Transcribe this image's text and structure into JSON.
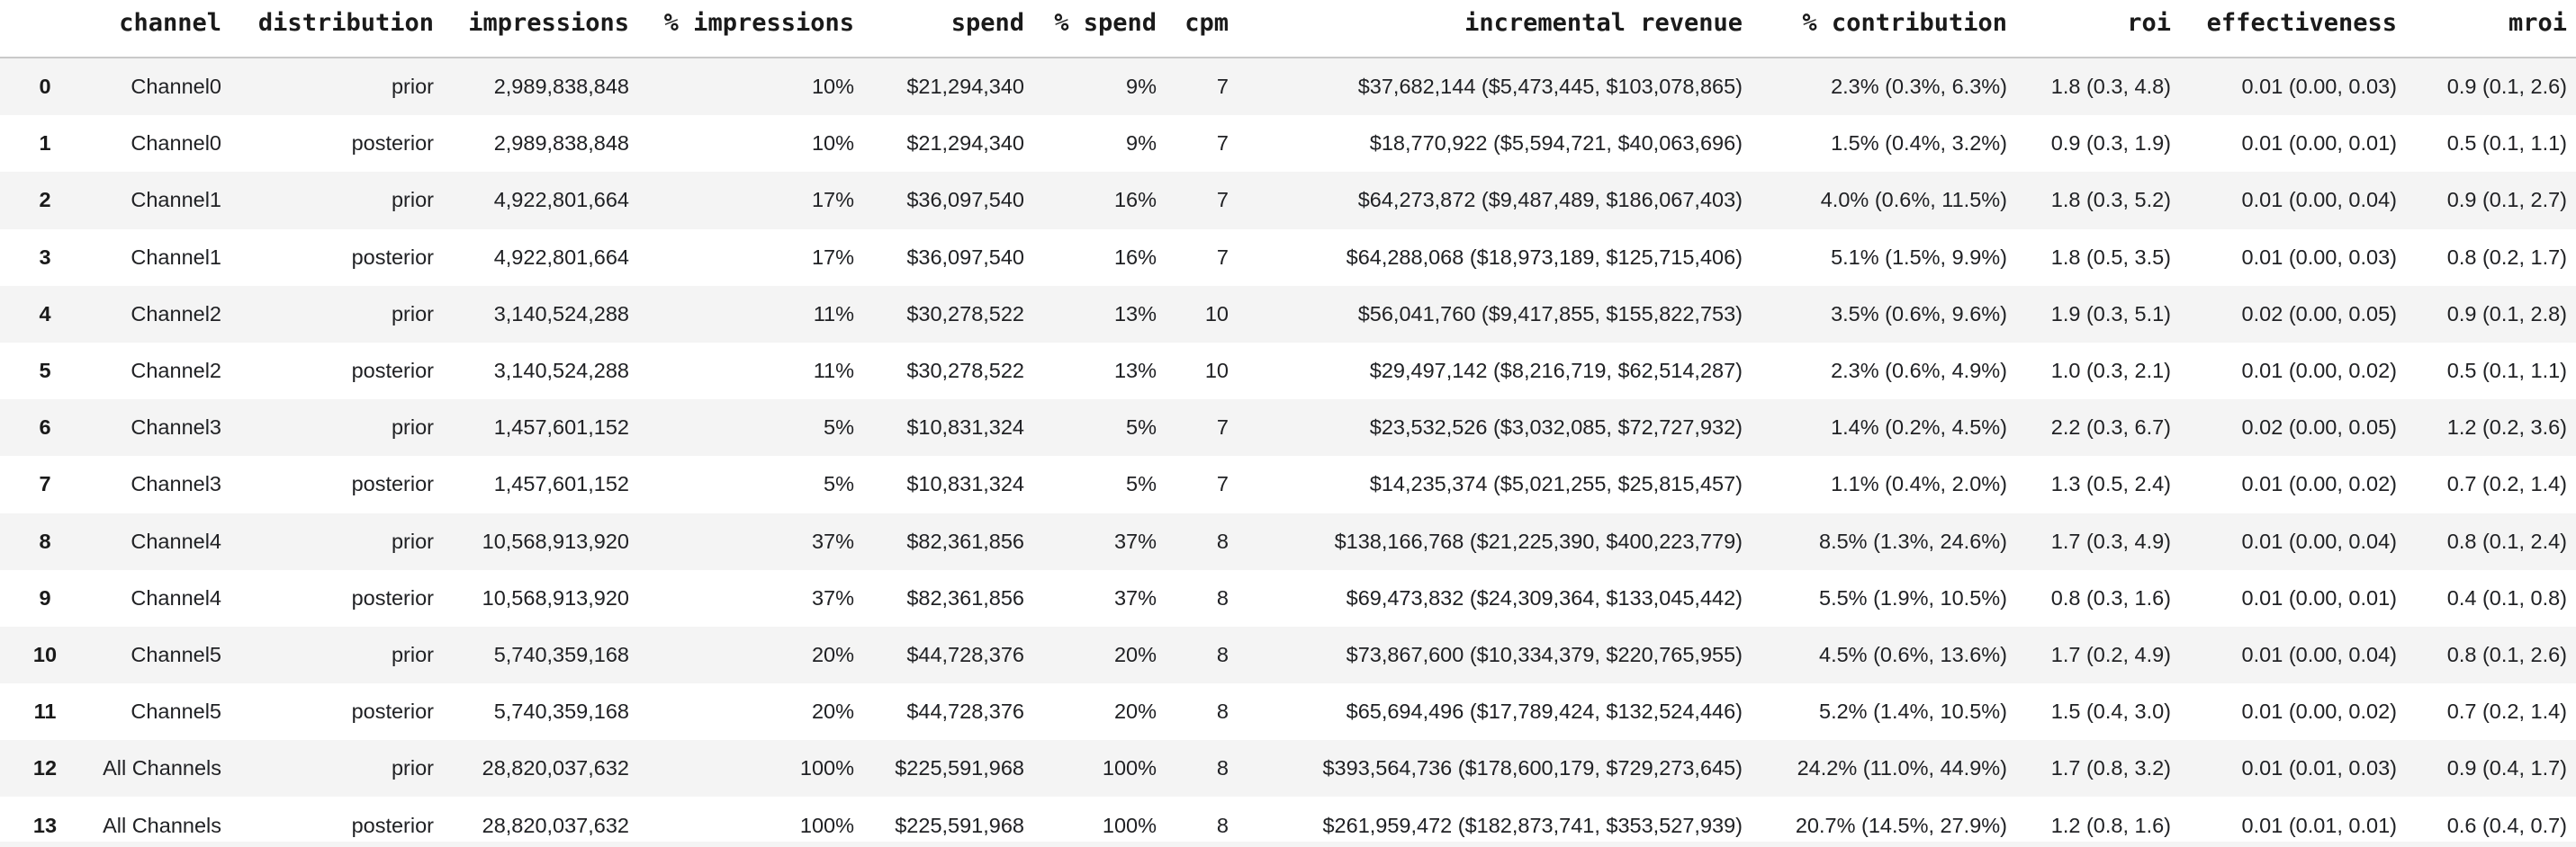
{
  "colors": {
    "background": "#ffffff",
    "stripe": "#f4f4f4",
    "header_border": "#c9c9c9",
    "text": "#202124"
  },
  "table": {
    "columns": [
      {
        "key": "index",
        "label": "",
        "align": "center"
      },
      {
        "key": "channel",
        "label": "channel",
        "align": "right"
      },
      {
        "key": "distribution",
        "label": "distribution",
        "align": "right"
      },
      {
        "key": "impressions",
        "label": "impressions",
        "align": "right"
      },
      {
        "key": "pct_impressions",
        "label": "% impressions",
        "align": "right"
      },
      {
        "key": "spend",
        "label": "spend",
        "align": "right"
      },
      {
        "key": "pct_spend",
        "label": "% spend",
        "align": "right"
      },
      {
        "key": "cpm",
        "label": "cpm",
        "align": "right"
      },
      {
        "key": "incremental_revenue",
        "label": "incremental revenue",
        "align": "right"
      },
      {
        "key": "pct_contribution",
        "label": "% contribution",
        "align": "right"
      },
      {
        "key": "roi",
        "label": "roi",
        "align": "right"
      },
      {
        "key": "effectiveness",
        "label": "effectiveness",
        "align": "right"
      },
      {
        "key": "mroi",
        "label": "mroi",
        "align": "right"
      }
    ],
    "rows": [
      {
        "index": "0",
        "channel": "Channel0",
        "distribution": "prior",
        "impressions": "2,989,838,848",
        "pct_impressions": "10%",
        "spend": "$21,294,340",
        "pct_spend": "9%",
        "cpm": "7",
        "incremental_revenue": "$37,682,144 ($5,473,445, $103,078,865)",
        "pct_contribution": "2.3% (0.3%, 6.3%)",
        "roi": "1.8 (0.3, 4.8)",
        "effectiveness": "0.01 (0.00, 0.03)",
        "mroi": "0.9 (0.1, 2.6)"
      },
      {
        "index": "1",
        "channel": "Channel0",
        "distribution": "posterior",
        "impressions": "2,989,838,848",
        "pct_impressions": "10%",
        "spend": "$21,294,340",
        "pct_spend": "9%",
        "cpm": "7",
        "incremental_revenue": "$18,770,922 ($5,594,721, $40,063,696)",
        "pct_contribution": "1.5% (0.4%, 3.2%)",
        "roi": "0.9 (0.3, 1.9)",
        "effectiveness": "0.01 (0.00, 0.01)",
        "mroi": "0.5 (0.1, 1.1)"
      },
      {
        "index": "2",
        "channel": "Channel1",
        "distribution": "prior",
        "impressions": "4,922,801,664",
        "pct_impressions": "17%",
        "spend": "$36,097,540",
        "pct_spend": "16%",
        "cpm": "7",
        "incremental_revenue": "$64,273,872 ($9,487,489, $186,067,403)",
        "pct_contribution": "4.0% (0.6%, 11.5%)",
        "roi": "1.8 (0.3, 5.2)",
        "effectiveness": "0.01 (0.00, 0.04)",
        "mroi": "0.9 (0.1, 2.7)"
      },
      {
        "index": "3",
        "channel": "Channel1",
        "distribution": "posterior",
        "impressions": "4,922,801,664",
        "pct_impressions": "17%",
        "spend": "$36,097,540",
        "pct_spend": "16%",
        "cpm": "7",
        "incremental_revenue": "$64,288,068 ($18,973,189, $125,715,406)",
        "pct_contribution": "5.1% (1.5%, 9.9%)",
        "roi": "1.8 (0.5, 3.5)",
        "effectiveness": "0.01 (0.00, 0.03)",
        "mroi": "0.8 (0.2, 1.7)"
      },
      {
        "index": "4",
        "channel": "Channel2",
        "distribution": "prior",
        "impressions": "3,140,524,288",
        "pct_impressions": "11%",
        "spend": "$30,278,522",
        "pct_spend": "13%",
        "cpm": "10",
        "incremental_revenue": "$56,041,760 ($9,417,855, $155,822,753)",
        "pct_contribution": "3.5% (0.6%, 9.6%)",
        "roi": "1.9 (0.3, 5.1)",
        "effectiveness": "0.02 (0.00, 0.05)",
        "mroi": "0.9 (0.1, 2.8)"
      },
      {
        "index": "5",
        "channel": "Channel2",
        "distribution": "posterior",
        "impressions": "3,140,524,288",
        "pct_impressions": "11%",
        "spend": "$30,278,522",
        "pct_spend": "13%",
        "cpm": "10",
        "incremental_revenue": "$29,497,142 ($8,216,719, $62,514,287)",
        "pct_contribution": "2.3% (0.6%, 4.9%)",
        "roi": "1.0 (0.3, 2.1)",
        "effectiveness": "0.01 (0.00, 0.02)",
        "mroi": "0.5 (0.1, 1.1)"
      },
      {
        "index": "6",
        "channel": "Channel3",
        "distribution": "prior",
        "impressions": "1,457,601,152",
        "pct_impressions": "5%",
        "spend": "$10,831,324",
        "pct_spend": "5%",
        "cpm": "7",
        "incremental_revenue": "$23,532,526 ($3,032,085, $72,727,932)",
        "pct_contribution": "1.4% (0.2%, 4.5%)",
        "roi": "2.2 (0.3, 6.7)",
        "effectiveness": "0.02 (0.00, 0.05)",
        "mroi": "1.2 (0.2, 3.6)"
      },
      {
        "index": "7",
        "channel": "Channel3",
        "distribution": "posterior",
        "impressions": "1,457,601,152",
        "pct_impressions": "5%",
        "spend": "$10,831,324",
        "pct_spend": "5%",
        "cpm": "7",
        "incremental_revenue": "$14,235,374 ($5,021,255, $25,815,457)",
        "pct_contribution": "1.1% (0.4%, 2.0%)",
        "roi": "1.3 (0.5, 2.4)",
        "effectiveness": "0.01 (0.00, 0.02)",
        "mroi": "0.7 (0.2, 1.4)"
      },
      {
        "index": "8",
        "channel": "Channel4",
        "distribution": "prior",
        "impressions": "10,568,913,920",
        "pct_impressions": "37%",
        "spend": "$82,361,856",
        "pct_spend": "37%",
        "cpm": "8",
        "incremental_revenue": "$138,166,768 ($21,225,390, $400,223,779)",
        "pct_contribution": "8.5% (1.3%, 24.6%)",
        "roi": "1.7 (0.3, 4.9)",
        "effectiveness": "0.01 (0.00, 0.04)",
        "mroi": "0.8 (0.1, 2.4)"
      },
      {
        "index": "9",
        "channel": "Channel4",
        "distribution": "posterior",
        "impressions": "10,568,913,920",
        "pct_impressions": "37%",
        "spend": "$82,361,856",
        "pct_spend": "37%",
        "cpm": "8",
        "incremental_revenue": "$69,473,832 ($24,309,364, $133,045,442)",
        "pct_contribution": "5.5% (1.9%, 10.5%)",
        "roi": "0.8 (0.3, 1.6)",
        "effectiveness": "0.01 (0.00, 0.01)",
        "mroi": "0.4 (0.1, 0.8)"
      },
      {
        "index": "10",
        "channel": "Channel5",
        "distribution": "prior",
        "impressions": "5,740,359,168",
        "pct_impressions": "20%",
        "spend": "$44,728,376",
        "pct_spend": "20%",
        "cpm": "8",
        "incremental_revenue": "$73,867,600 ($10,334,379, $220,765,955)",
        "pct_contribution": "4.5% (0.6%, 13.6%)",
        "roi": "1.7 (0.2, 4.9)",
        "effectiveness": "0.01 (0.00, 0.04)",
        "mroi": "0.8 (0.1, 2.6)"
      },
      {
        "index": "11",
        "channel": "Channel5",
        "distribution": "posterior",
        "impressions": "5,740,359,168",
        "pct_impressions": "20%",
        "spend": "$44,728,376",
        "pct_spend": "20%",
        "cpm": "8",
        "incremental_revenue": "$65,694,496 ($17,789,424, $132,524,446)",
        "pct_contribution": "5.2% (1.4%, 10.5%)",
        "roi": "1.5 (0.4, 3.0)",
        "effectiveness": "0.01 (0.00, 0.02)",
        "mroi": "0.7 (0.2, 1.4)"
      },
      {
        "index": "12",
        "channel": "All Channels",
        "distribution": "prior",
        "impressions": "28,820,037,632",
        "pct_impressions": "100%",
        "spend": "$225,591,968",
        "pct_spend": "100%",
        "cpm": "8",
        "incremental_revenue": "$393,564,736 ($178,600,179, $729,273,645)",
        "pct_contribution": "24.2% (11.0%, 44.9%)",
        "roi": "1.7 (0.8, 3.2)",
        "effectiveness": "0.01 (0.01, 0.03)",
        "mroi": "0.9 (0.4, 1.7)"
      },
      {
        "index": "13",
        "channel": "All Channels",
        "distribution": "posterior",
        "impressions": "28,820,037,632",
        "pct_impressions": "100%",
        "spend": "$225,591,968",
        "pct_spend": "100%",
        "cpm": "8",
        "incremental_revenue": "$261,959,472 ($182,873,741, $353,527,939)",
        "pct_contribution": "20.7% (14.5%, 27.9%)",
        "roi": "1.2 (0.8, 1.6)",
        "effectiveness": "0.01 (0.01, 0.01)",
        "mroi": "0.6 (0.4, 0.7)"
      }
    ]
  }
}
